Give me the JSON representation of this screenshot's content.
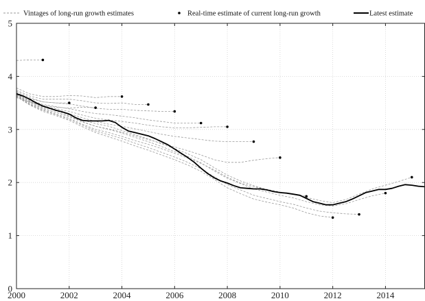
{
  "chart_data": {
    "type": "line",
    "title": "",
    "xlabel": "",
    "ylabel": "",
    "xlim": [
      2000,
      2015.5
    ],
    "ylim": [
      0,
      5
    ],
    "xticks": [
      2000,
      2002,
      2004,
      2006,
      2008,
      2010,
      2012,
      2014
    ],
    "xtick_labels": [
      "2000",
      "2002",
      "2004",
      "2006",
      "2008",
      "2010",
      "2012",
      "2014"
    ],
    "yticks": [
      0,
      1,
      2,
      3,
      4,
      5
    ],
    "ytick_labels": [
      "0",
      "1",
      "2",
      "3",
      "4",
      "5"
    ],
    "grid": true,
    "legend_position": "top",
    "legend": {
      "vintages": "Vintages of long-run growth estimates",
      "realtime": "Real-time estimate of current long-run growth",
      "latest": "Latest estimate"
    },
    "colors": {
      "vintage": "#999999",
      "realtime": "#000000",
      "latest": "#000000",
      "grid": "#d0d0d0"
    },
    "latest": {
      "x": [
        2000,
        2000.25,
        2000.5,
        2000.75,
        2001,
        2001.25,
        2001.5,
        2001.75,
        2002,
        2002.25,
        2002.5,
        2002.75,
        2003,
        2003.25,
        2003.5,
        2003.75,
        2004,
        2004.25,
        2004.5,
        2004.75,
        2005,
        2005.25,
        2005.5,
        2005.75,
        2006,
        2006.25,
        2006.5,
        2006.75,
        2007,
        2007.25,
        2007.5,
        2007.75,
        2008,
        2008.25,
        2008.5,
        2008.75,
        2009,
        2009.25,
        2009.5,
        2009.75,
        2010,
        2010.25,
        2010.5,
        2010.75,
        2011,
        2011.25,
        2011.5,
        2011.75,
        2012,
        2012.25,
        2012.5,
        2012.75,
        2013,
        2013.25,
        2013.5,
        2013.75,
        2014,
        2014.25,
        2014.5,
        2014.75,
        2015,
        2015.25,
        2015.5
      ],
      "y": [
        3.67,
        3.63,
        3.57,
        3.5,
        3.44,
        3.4,
        3.36,
        3.33,
        3.29,
        3.22,
        3.17,
        3.16,
        3.16,
        3.16,
        3.17,
        3.13,
        3.04,
        2.97,
        2.94,
        2.91,
        2.88,
        2.83,
        2.77,
        2.71,
        2.63,
        2.55,
        2.47,
        2.38,
        2.27,
        2.17,
        2.09,
        2.03,
        1.99,
        1.94,
        1.9,
        1.89,
        1.88,
        1.88,
        1.86,
        1.83,
        1.81,
        1.8,
        1.78,
        1.76,
        1.7,
        1.64,
        1.61,
        1.58,
        1.58,
        1.61,
        1.64,
        1.69,
        1.75,
        1.81,
        1.84,
        1.87,
        1.87,
        1.89,
        1.93,
        1.96,
        1.95,
        1.93,
        1.92
      ]
    },
    "vintages": [
      {
        "x": [
          2000,
          2000.5,
          2001
        ],
        "y": [
          4.3,
          4.31,
          4.31
        ]
      },
      {
        "x": [
          2000,
          2000.5,
          2001,
          2001.5,
          2002
        ],
        "y": [
          3.65,
          3.58,
          3.52,
          3.5,
          3.5
        ]
      },
      {
        "x": [
          2000,
          2000.5,
          2001,
          2001.5,
          2002,
          2002.5,
          2003
        ],
        "y": [
          3.6,
          3.52,
          3.45,
          3.42,
          3.4,
          3.42,
          3.41
        ]
      },
      {
        "x": [
          2000,
          2000.5,
          2001,
          2001.5,
          2002,
          2002.5,
          2003,
          2003.5,
          2004
        ],
        "y": [
          3.78,
          3.67,
          3.62,
          3.62,
          3.64,
          3.63,
          3.6,
          3.62,
          3.62
        ]
      },
      {
        "x": [
          2000,
          2000.5,
          2001,
          2001.5,
          2002,
          2002.5,
          2003,
          2003.5,
          2004,
          2004.5,
          2005
        ],
        "y": [
          3.74,
          3.63,
          3.57,
          3.57,
          3.57,
          3.54,
          3.5,
          3.49,
          3.5,
          3.47,
          3.47
        ]
      },
      {
        "x": [
          2000,
          2000.5,
          2001,
          2001.5,
          2002,
          2002.5,
          2003,
          2003.5,
          2004,
          2004.5,
          2005,
          2005.5,
          2006
        ],
        "y": [
          3.72,
          3.6,
          3.52,
          3.5,
          3.48,
          3.44,
          3.4,
          3.38,
          3.38,
          3.36,
          3.35,
          3.34,
          3.34
        ]
      },
      {
        "x": [
          2000,
          2000.5,
          2001,
          2001.5,
          2002,
          2002.5,
          2003,
          2003.5,
          2004,
          2004.5,
          2005,
          2005.5,
          2006,
          2006.5,
          2007
        ],
        "y": [
          3.7,
          3.56,
          3.47,
          3.43,
          3.39,
          3.34,
          3.3,
          3.28,
          3.25,
          3.22,
          3.18,
          3.15,
          3.12,
          3.12,
          3.12
        ]
      },
      {
        "x": [
          2000,
          2000.5,
          2001,
          2001.5,
          2002,
          2002.5,
          2003,
          2003.5,
          2004,
          2004.5,
          2005,
          2005.5,
          2006,
          2006.5,
          2007,
          2007.5,
          2008
        ],
        "y": [
          3.69,
          3.54,
          3.44,
          3.39,
          3.34,
          3.27,
          3.21,
          3.18,
          3.15,
          3.12,
          3.08,
          3.05,
          3.03,
          3.03,
          3.04,
          3.05,
          3.05
        ]
      },
      {
        "x": [
          2000,
          2000.5,
          2001,
          2001.5,
          2002,
          2002.5,
          2003,
          2003.5,
          2004,
          2004.5,
          2005,
          2005.5,
          2006,
          2006.5,
          2007,
          2007.5,
          2008,
          2008.5,
          2009
        ],
        "y": [
          3.68,
          3.52,
          3.42,
          3.36,
          3.3,
          3.22,
          3.15,
          3.1,
          3.06,
          3.01,
          2.96,
          2.91,
          2.87,
          2.84,
          2.81,
          2.78,
          2.77,
          2.77,
          2.77
        ]
      },
      {
        "x": [
          2000,
          2000.5,
          2001,
          2001.5,
          2002,
          2002.5,
          2003,
          2003.5,
          2004,
          2004.5,
          2005,
          2005.5,
          2006,
          2006.5,
          2007,
          2007.5,
          2008,
          2008.5,
          2009,
          2009.5,
          2010
        ],
        "y": [
          3.66,
          3.5,
          3.39,
          3.32,
          3.25,
          3.15,
          3.06,
          3.01,
          2.95,
          2.88,
          2.81,
          2.74,
          2.67,
          2.6,
          2.52,
          2.43,
          2.38,
          2.38,
          2.42,
          2.45,
          2.47
        ]
      },
      {
        "x": [
          2000,
          2000.5,
          2001,
          2001.5,
          2002,
          2002.5,
          2003,
          2003.5,
          2004,
          2004.5,
          2005,
          2005.5,
          2006,
          2006.5,
          2007,
          2007.5,
          2008,
          2008.5,
          2009,
          2009.5,
          2010,
          2010.5,
          2011
        ],
        "y": [
          3.64,
          3.48,
          3.37,
          3.29,
          3.21,
          3.1,
          3.0,
          2.94,
          2.87,
          2.79,
          2.72,
          2.64,
          2.55,
          2.46,
          2.36,
          2.24,
          2.1,
          1.99,
          1.92,
          1.87,
          1.82,
          1.78,
          1.74
        ]
      },
      {
        "x": [
          2000,
          2000.5,
          2001,
          2001.5,
          2002,
          2002.5,
          2003,
          2003.5,
          2004,
          2004.5,
          2005,
          2005.5,
          2006,
          2006.5,
          2007,
          2007.5,
          2008,
          2008.5,
          2009,
          2009.5,
          2010,
          2010.5,
          2011,
          2011.5,
          2012
        ],
        "y": [
          3.62,
          3.46,
          3.34,
          3.26,
          3.17,
          3.05,
          2.94,
          2.86,
          2.78,
          2.69,
          2.61,
          2.52,
          2.43,
          2.33,
          2.21,
          2.06,
          1.9,
          1.79,
          1.69,
          1.63,
          1.58,
          1.52,
          1.43,
          1.37,
          1.34
        ]
      },
      {
        "x": [
          2000,
          2000.5,
          2001,
          2001.5,
          2002,
          2002.5,
          2003,
          2003.5,
          2004,
          2004.5,
          2005,
          2005.5,
          2006,
          2006.5,
          2007,
          2007.5,
          2008,
          2008.5,
          2009,
          2009.5,
          2010,
          2010.5,
          2011,
          2011.5,
          2012,
          2012.5,
          2013
        ],
        "y": [
          3.63,
          3.47,
          3.36,
          3.28,
          3.19,
          3.08,
          2.97,
          2.9,
          2.83,
          2.74,
          2.66,
          2.57,
          2.48,
          2.38,
          2.26,
          2.11,
          1.96,
          1.86,
          1.76,
          1.7,
          1.64,
          1.59,
          1.52,
          1.46,
          1.43,
          1.41,
          1.4
        ]
      },
      {
        "x": [
          2000,
          2000.5,
          2001,
          2001.5,
          2002,
          2002.5,
          2003,
          2003.5,
          2004,
          2004.5,
          2005,
          2005.5,
          2006,
          2006.5,
          2007,
          2007.5,
          2008,
          2008.5,
          2009,
          2009.5,
          2010,
          2010.5,
          2011,
          2011.5,
          2012,
          2012.5,
          2013,
          2013.5,
          2014
        ],
        "y": [
          3.65,
          3.5,
          3.4,
          3.32,
          3.24,
          3.14,
          3.06,
          3.0,
          2.93,
          2.85,
          2.77,
          2.68,
          2.58,
          2.49,
          2.37,
          2.22,
          2.08,
          1.98,
          1.88,
          1.82,
          1.76,
          1.71,
          1.64,
          1.58,
          1.56,
          1.6,
          1.68,
          1.75,
          1.8
        ]
      },
      {
        "x": [
          2000,
          2000.5,
          2001,
          2001.5,
          2002,
          2002.5,
          2003,
          2003.5,
          2004,
          2004.5,
          2005,
          2005.5,
          2006,
          2006.5,
          2007,
          2007.5,
          2008,
          2008.5,
          2009,
          2009.5,
          2010,
          2010.5,
          2011,
          2011.5,
          2012,
          2012.5,
          2013,
          2013.5,
          2014,
          2014.5,
          2015
        ],
        "y": [
          3.66,
          3.53,
          3.43,
          3.35,
          3.27,
          3.18,
          3.11,
          3.06,
          2.98,
          2.9,
          2.82,
          2.73,
          2.64,
          2.54,
          2.43,
          2.28,
          2.14,
          2.03,
          1.94,
          1.87,
          1.82,
          1.78,
          1.72,
          1.66,
          1.62,
          1.68,
          1.78,
          1.88,
          1.95,
          2.02,
          2.1
        ]
      }
    ],
    "realtime": {
      "x": [
        2001,
        2002,
        2003,
        2004,
        2005,
        2006,
        2007,
        2008,
        2009,
        2010,
        2011,
        2012,
        2013,
        2014,
        2015
      ],
      "y": [
        4.31,
        3.5,
        3.41,
        3.62,
        3.47,
        3.34,
        3.12,
        3.05,
        2.77,
        2.47,
        1.74,
        1.34,
        1.4,
        1.8,
        2.1
      ]
    }
  }
}
